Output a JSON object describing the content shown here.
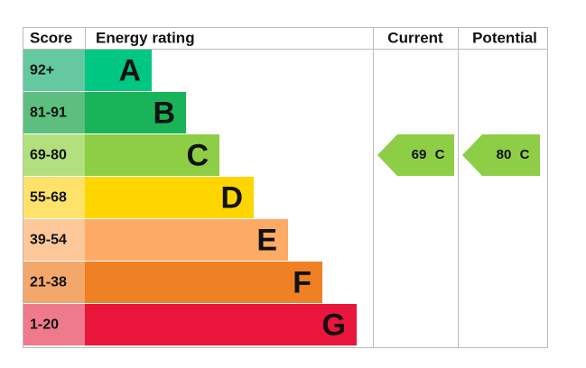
{
  "header": {
    "score": "Score",
    "rating": "Energy rating",
    "current": "Current",
    "potential": "Potential"
  },
  "bands": [
    {
      "score": "92+",
      "letter": "A"
    },
    {
      "score": "81-91",
      "letter": "B"
    },
    {
      "score": "69-80",
      "letter": "C"
    },
    {
      "score": "55-68",
      "letter": "D"
    },
    {
      "score": "39-54",
      "letter": "E"
    },
    {
      "score": "21-38",
      "letter": "F"
    },
    {
      "score": "1-20",
      "letter": "G"
    }
  ],
  "current": {
    "score": 69,
    "band": "C"
  },
  "potential": {
    "score": 80,
    "band": "C"
  }
}
